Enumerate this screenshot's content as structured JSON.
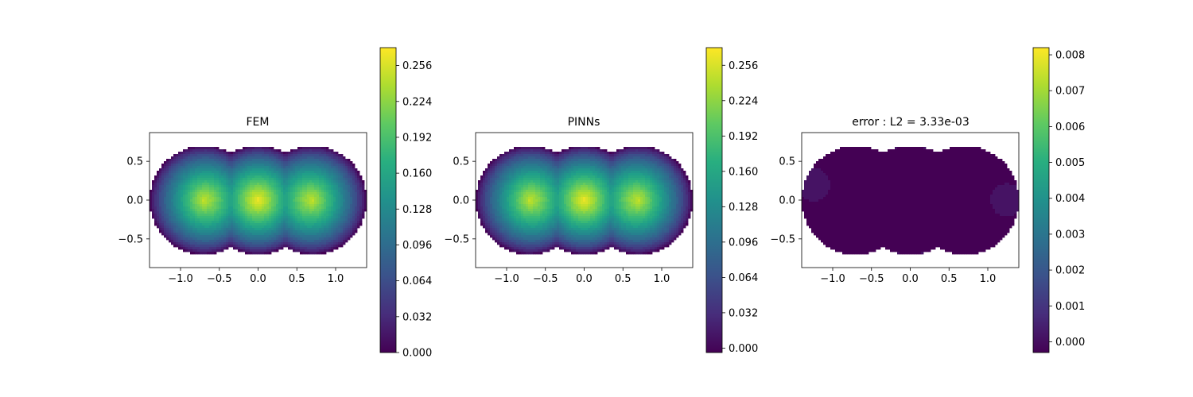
{
  "chart_data": [
    {
      "type": "heatmap",
      "title": "FEM",
      "xlabel": "",
      "ylabel": "",
      "xlim": [
        -1.4,
        1.4
      ],
      "ylim": [
        -0.87,
        0.87
      ],
      "x_ticks": [
        -1.0,
        -0.5,
        0.0,
        0.5,
        1.0
      ],
      "x_tick_labels": [
        "−1.0",
        "−0.5",
        "0.0",
        "0.5",
        "1.0"
      ],
      "y_ticks": [
        0.5,
        0.0,
        -0.5
      ],
      "y_tick_labels": [
        "0.5",
        "0.0",
        "−0.5"
      ],
      "domain": "union of three disks centered at (-0.7,0), (0,0), (0.7,0)",
      "max_value": 0.27,
      "hotspot": "center",
      "colormap": "viridis",
      "colorbar": {
        "range": [
          0.0,
          0.272
        ],
        "ticks": [
          0.0,
          0.032,
          0.064,
          0.096,
          0.128,
          0.16,
          0.192,
          0.224,
          0.256
        ],
        "tick_labels": [
          "0.000",
          "0.032",
          "0.064",
          "0.096",
          "0.128",
          "0.160",
          "0.192",
          "0.224",
          "0.256"
        ]
      }
    },
    {
      "type": "heatmap",
      "title": "PINNs",
      "xlabel": "",
      "ylabel": "",
      "xlim": [
        -1.4,
        1.4
      ],
      "ylim": [
        -0.87,
        0.87
      ],
      "x_ticks": [
        -1.0,
        -0.5,
        0.0,
        0.5,
        1.0
      ],
      "x_tick_labels": [
        "−1.0",
        "−0.5",
        "0.0",
        "0.5",
        "1.0"
      ],
      "y_ticks": [
        0.5,
        0.0,
        -0.5
      ],
      "y_tick_labels": [
        "0.5",
        "0.0",
        "−0.5"
      ],
      "domain": "union of three disks centered at (-0.7,0), (0,0), (0.7,0)",
      "max_value": 0.27,
      "hotspot": "center",
      "colormap": "viridis",
      "colorbar": {
        "range": [
          -0.004,
          0.272
        ],
        "ticks": [
          0.0,
          0.032,
          0.064,
          0.096,
          0.128,
          0.16,
          0.192,
          0.224,
          0.256
        ],
        "tick_labels": [
          "0.000",
          "0.032",
          "0.064",
          "0.096",
          "0.128",
          "0.160",
          "0.192",
          "0.224",
          "0.256"
        ]
      }
    },
    {
      "type": "heatmap",
      "title": "error : L2 = 3.33e-03",
      "xlabel": "",
      "ylabel": "",
      "xlim": [
        -1.4,
        1.4
      ],
      "ylim": [
        -0.87,
        0.87
      ],
      "x_ticks": [
        -1.0,
        -0.5,
        0.0,
        0.5,
        1.0
      ],
      "x_tick_labels": [
        "−1.0",
        "−0.5",
        "0.0",
        "0.5",
        "1.0"
      ],
      "y_ticks": [
        0.5,
        0.0,
        -0.5
      ],
      "y_tick_labels": [
        "0.5",
        "0.0",
        "−0.5"
      ],
      "domain": "union of three disks centered at (-0.7,0), (0,0), (0.7,0)",
      "max_value": 0.0082,
      "hotspot": "cusps at (±0.2, ±0.8)",
      "colormap": "viridis",
      "colorbar": {
        "range": [
          -0.0003,
          0.0082
        ],
        "ticks": [
          0.0,
          0.001,
          0.002,
          0.003,
          0.004,
          0.005,
          0.006,
          0.007,
          0.008
        ],
        "tick_labels": [
          "0.000",
          "0.001",
          "0.002",
          "0.003",
          "0.004",
          "0.005",
          "0.006",
          "0.007",
          "0.008"
        ]
      }
    }
  ]
}
